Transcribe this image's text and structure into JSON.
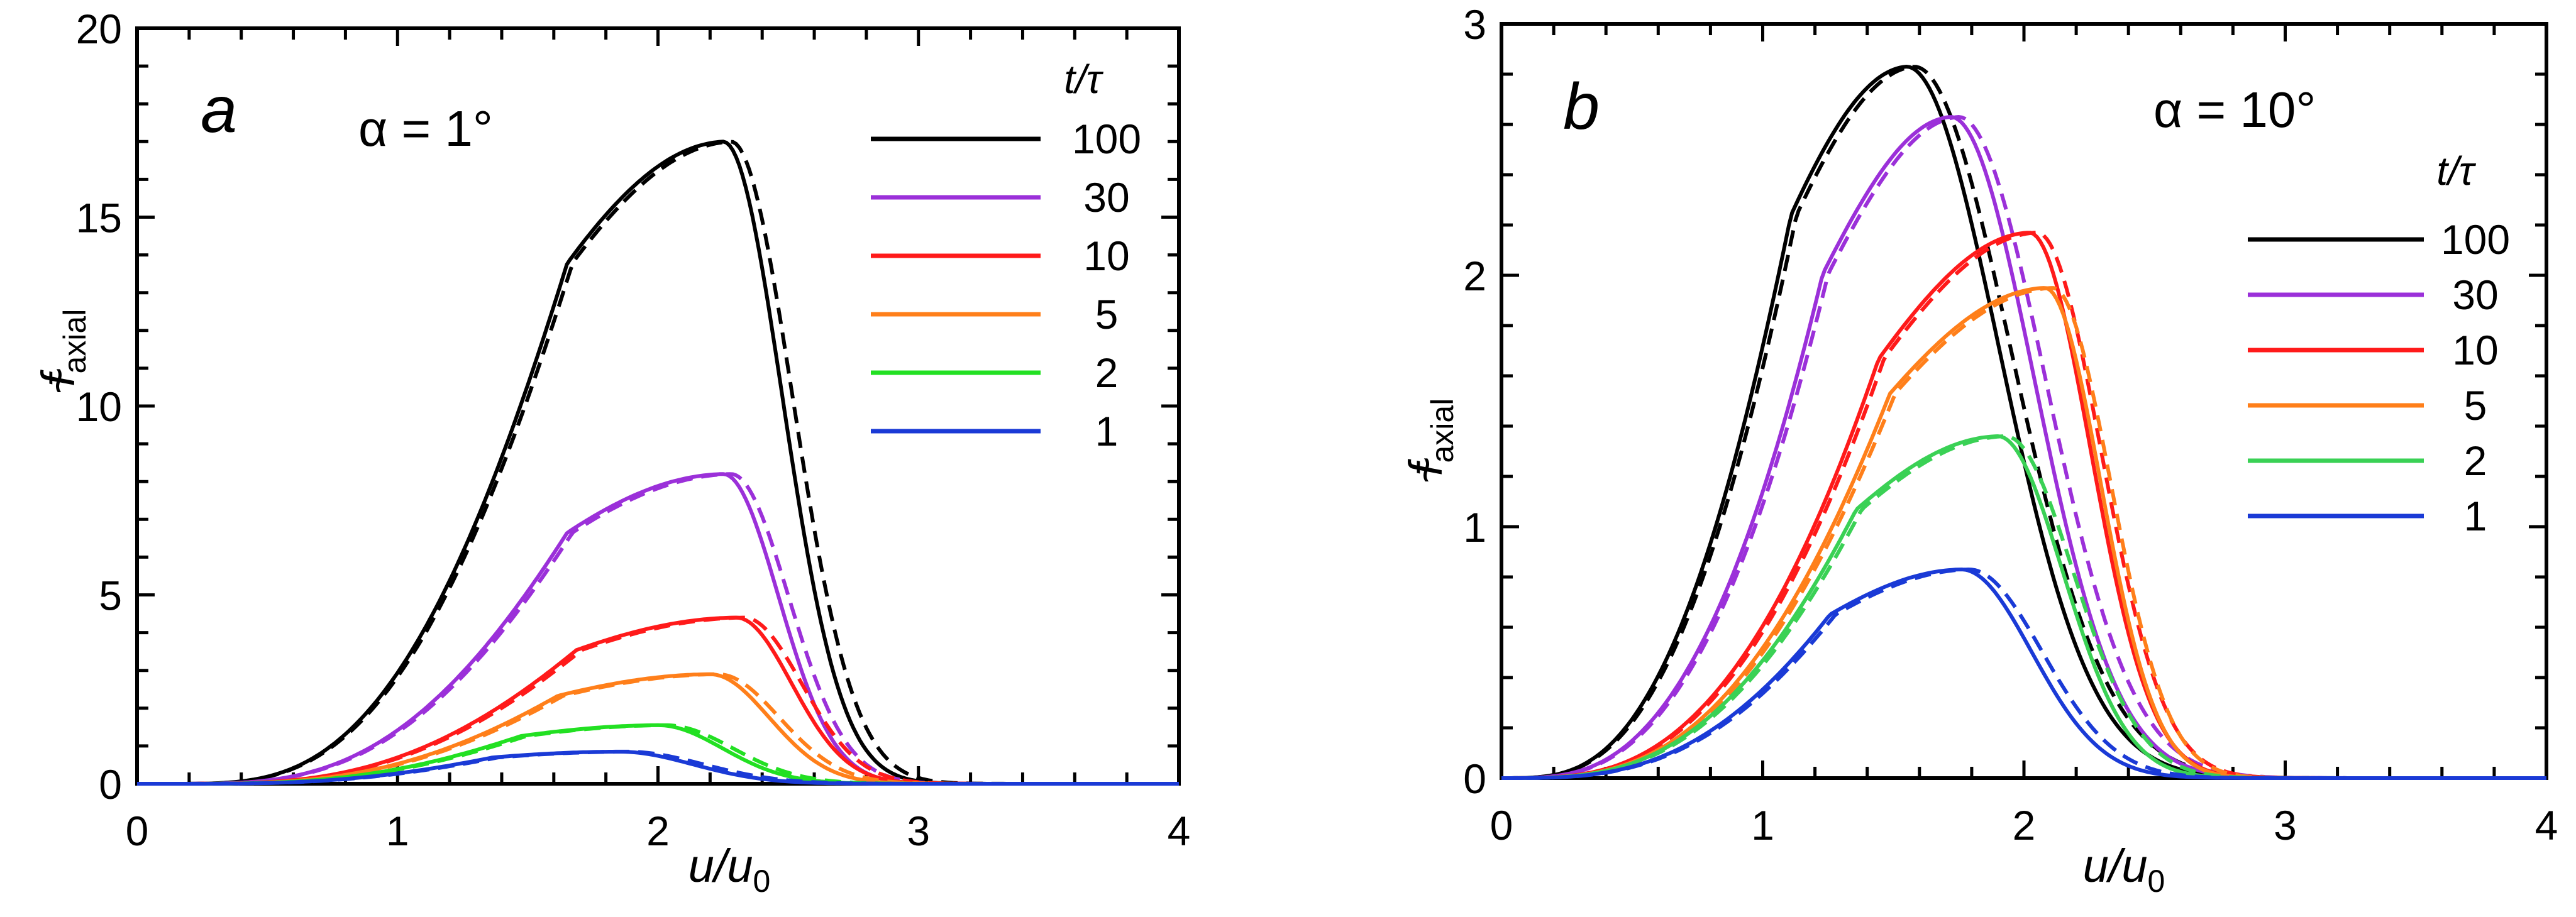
{
  "chart_data": [
    {
      "type": "line",
      "panel": "a",
      "annotation": "α = 1°",
      "xlabel": "u/u",
      "xlabel_sub": "0",
      "ylabel": "f",
      "ylabel_sub": "axial",
      "ylabel_accent": "~",
      "xlim": [
        0,
        4
      ],
      "ylim": [
        0,
        20
      ],
      "xticks": [
        "0",
        "1",
        "2",
        "3",
        "4"
      ],
      "yticks": [
        "0",
        "5",
        "10",
        "15",
        "20"
      ],
      "legend_title": "t/τ",
      "legend_position": "top-right",
      "line_styles": "solid = simulation, dashed = model",
      "series": [
        {
          "name": "100",
          "color": "#000000",
          "peak_x": 2.25,
          "peak_y": 17.0,
          "ws": 0.95,
          "wf": 0.32,
          "x0": 0.15
        },
        {
          "name": "30",
          "color": "#9b30d9",
          "peak_x": 2.25,
          "peak_y": 8.2,
          "ws": 0.95,
          "wf": 0.3,
          "x0": 0.15
        },
        {
          "name": "10",
          "color": "#ff1a1a",
          "peak_x": 2.3,
          "peak_y": 4.4,
          "ws": 0.95,
          "wf": 0.3,
          "x0": 0.15
        },
        {
          "name": "5",
          "color": "#ff7f1a",
          "peak_x": 2.2,
          "peak_y": 2.9,
          "ws": 0.9,
          "wf": 0.32,
          "x0": 0.15
        },
        {
          "name": "2",
          "color": "#22e022",
          "peak_x": 2.0,
          "peak_y": 1.55,
          "ws": 0.85,
          "wf": 0.35,
          "x0": 0.15
        },
        {
          "name": "1",
          "color": "#1a3ad6",
          "peak_x": 1.85,
          "peak_y": 0.85,
          "ws": 0.8,
          "wf": 0.4,
          "x0": 0.15
        }
      ]
    },
    {
      "type": "line",
      "panel": "b",
      "annotation": "α = 10°",
      "xlabel": "u/u",
      "xlabel_sub": "0",
      "ylabel": "f",
      "ylabel_sub": "axial",
      "ylabel_accent": "~",
      "xlim": [
        0,
        4
      ],
      "ylim": [
        0,
        3
      ],
      "xticks": [
        "0",
        "1",
        "2",
        "3",
        "4"
      ],
      "yticks": [
        "0",
        "1",
        "2",
        "3"
      ],
      "legend_title": "t/τ",
      "legend_position": "right",
      "line_styles": "solid = simulation, dashed = model",
      "series": [
        {
          "name": "100",
          "color": "#000000",
          "peak_x": 1.55,
          "peak_y": 2.83,
          "ws": 0.65,
          "wf": 0.5,
          "x0": 0.0
        },
        {
          "name": "30",
          "color": "#9b30d9",
          "peak_x": 1.72,
          "peak_y": 2.63,
          "ws": 0.65,
          "wf": 0.45,
          "x0": 0.0
        },
        {
          "name": "10",
          "color": "#ff1a1a",
          "peak_x": 2.02,
          "peak_y": 2.17,
          "ws": 0.78,
          "wf": 0.33,
          "x0": 0.0
        },
        {
          "name": "5",
          "color": "#ff7f1a",
          "peak_x": 2.08,
          "peak_y": 1.95,
          "ws": 0.85,
          "wf": 0.3,
          "x0": 0.0
        },
        {
          "name": "2",
          "color": "#3ad155",
          "peak_x": 1.9,
          "peak_y": 1.36,
          "ws": 0.78,
          "wf": 0.35,
          "x0": 0.0
        },
        {
          "name": "1",
          "color": "#1a3ad6",
          "peak_x": 1.76,
          "peak_y": 0.83,
          "ws": 0.72,
          "wf": 0.38,
          "x0": 0.0
        }
      ]
    }
  ]
}
